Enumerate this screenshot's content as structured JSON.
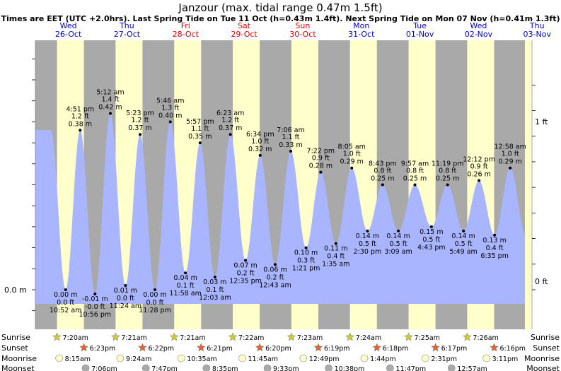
{
  "title": "Janzour (max. tidal range 0.47m 1.5ft)",
  "subtitle": "Times are EET (UTC +2.0hrs). Last Spring Tide on Tue 11 Oct (h=0.43m 1.4ft). Next Spring Tide on Mon 07 Nov (h=0.41m 1.3ft)",
  "colors": {
    "night": "#a9a9a9",
    "day": "#ffffcc",
    "tide": "#a9b5ff",
    "weekend": "#dd0000",
    "weekday": "#0000cc"
  },
  "days": [
    {
      "dow": "Wed",
      "date": "26-Oct",
      "weekend": false
    },
    {
      "dow": "Thu",
      "date": "27-Oct",
      "weekend": false
    },
    {
      "dow": "Fri",
      "date": "28-Oct",
      "weekend": true
    },
    {
      "dow": "Sat",
      "date": "29-Oct",
      "weekend": true
    },
    {
      "dow": "Sun",
      "date": "30-Oct",
      "weekend": true
    },
    {
      "dow": "Mon",
      "date": "31-Oct",
      "weekend": false
    },
    {
      "dow": "Tue",
      "date": "01-Nov",
      "weekend": false
    },
    {
      "dow": "Wed",
      "date": "02-Nov",
      "weekend": false
    },
    {
      "dow": "Thu",
      "date": "03-Nov",
      "weekend": false
    }
  ],
  "chart_data": {
    "type": "area",
    "y_left_label": "0.0 m",
    "y_right_ticks": [
      "1 ft",
      "0 ft"
    ],
    "x_range_hours": [
      -1.5,
      199
    ],
    "ylim_m": [
      -0.1,
      0.55
    ],
    "tides": [
      {
        "day": 0,
        "t": "10:52 am",
        "type": "low",
        "m": "0.00 m",
        "ft": "0.0 ft",
        "hour": 10.87,
        "h": 0.0
      },
      {
        "day": 0,
        "t": "4:51 pm",
        "type": "high",
        "m": "0.38 m",
        "ft": "1.2 ft",
        "hour": 16.85,
        "h": 0.38
      },
      {
        "day": 0,
        "t": "10:56 pm",
        "type": "low",
        "m": "-0.01 m",
        "ft": "-0.0 ft",
        "hour": 22.93,
        "h": -0.01
      },
      {
        "day": 1,
        "t": "5:12 am",
        "type": "high",
        "m": "0.42 m",
        "ft": "1.4 ft",
        "hour": 29.2,
        "h": 0.42
      },
      {
        "day": 1,
        "t": "11:24 am",
        "type": "low",
        "m": "0.01 m",
        "ft": "0.0 ft",
        "hour": 35.4,
        "h": 0.01
      },
      {
        "day": 1,
        "t": "5:23 pm",
        "type": "high",
        "m": "0.37 m",
        "ft": "1.2 ft",
        "hour": 41.38,
        "h": 0.37
      },
      {
        "day": 1,
        "t": "11:28 pm",
        "type": "low",
        "m": "0.00 m",
        "ft": "0.0 ft",
        "hour": 47.47,
        "h": 0.0
      },
      {
        "day": 2,
        "t": "5:46 am",
        "type": "high",
        "m": "0.40 m",
        "ft": "1.3 ft",
        "hour": 53.77,
        "h": 0.4
      },
      {
        "day": 2,
        "t": "11:58 am",
        "type": "low",
        "m": "0.04 m",
        "ft": "0.1 ft",
        "hour": 59.97,
        "h": 0.04
      },
      {
        "day": 2,
        "t": "5:57 pm",
        "type": "high",
        "m": "0.35 m",
        "ft": "1.1 ft",
        "hour": 65.95,
        "h": 0.35
      },
      {
        "day": 3,
        "t": "12:03 am",
        "type": "low",
        "m": "0.03 m",
        "ft": "0.1 ft",
        "hour": 72.05,
        "h": 0.03
      },
      {
        "day": 3,
        "t": "6:23 am",
        "type": "high",
        "m": "0.37 m",
        "ft": "1.2 ft",
        "hour": 78.38,
        "h": 0.37
      },
      {
        "day": 3,
        "t": "12:35 pm",
        "type": "low",
        "m": "0.07 m",
        "ft": "0.2 ft",
        "hour": 84.58,
        "h": 0.07
      },
      {
        "day": 3,
        "t": "6:34 pm",
        "type": "high",
        "m": "0.32 m",
        "ft": "1.0 ft",
        "hour": 90.57,
        "h": 0.32
      },
      {
        "day": 4,
        "t": "12:43 am",
        "type": "low",
        "m": "0.06 m",
        "ft": "0.2 ft",
        "hour": 96.72,
        "h": 0.06
      },
      {
        "day": 4,
        "t": "7:06 am",
        "type": "high",
        "m": "0.33 m",
        "ft": "1.1 ft",
        "hour": 103.1,
        "h": 0.33
      },
      {
        "day": 4,
        "t": "1:21 pm",
        "type": "low",
        "m": "0.10 m",
        "ft": "0.3 ft",
        "hour": 109.35,
        "h": 0.1
      },
      {
        "day": 4,
        "t": "7:22 pm",
        "type": "high",
        "m": "0.28 m",
        "ft": "0.9 ft",
        "hour": 115.37,
        "h": 0.28
      },
      {
        "day": 5,
        "t": "1:35 am",
        "type": "low",
        "m": "0.11 m",
        "ft": "0.4 ft",
        "hour": 121.58,
        "h": 0.11
      },
      {
        "day": 5,
        "t": "8:05 am",
        "type": "high",
        "m": "0.29 m",
        "ft": "1.0 ft",
        "hour": 128.08,
        "h": 0.29
      },
      {
        "day": 5,
        "t": "2:30 pm",
        "type": "low",
        "m": "0.14 m",
        "ft": "0.5 ft",
        "hour": 134.5,
        "h": 0.14
      },
      {
        "day": 5,
        "t": "8:43 pm",
        "type": "high",
        "m": "0.25 m",
        "ft": "0.8 ft",
        "hour": 140.72,
        "h": 0.25
      },
      {
        "day": 6,
        "t": "3:09 am",
        "type": "low",
        "m": "0.14 m",
        "ft": "0.5 ft",
        "hour": 147.15,
        "h": 0.14
      },
      {
        "day": 6,
        "t": "9:57 am",
        "type": "high",
        "m": "0.25 m",
        "ft": "0.8 ft",
        "hour": 153.95,
        "h": 0.25
      },
      {
        "day": 6,
        "t": "4:43 pm",
        "type": "low",
        "m": "0.15 m",
        "ft": "0.5 ft",
        "hour": 160.72,
        "h": 0.15
      },
      {
        "day": 6,
        "t": "11:19 pm",
        "type": "high",
        "m": "0.25 m",
        "ft": "0.8 ft",
        "hour": 167.32,
        "h": 0.25
      },
      {
        "day": 7,
        "t": "5:49 am",
        "type": "low",
        "m": "0.14 m",
        "ft": "0.5 ft",
        "hour": 173.82,
        "h": 0.14
      },
      {
        "day": 7,
        "t": "12:12 pm",
        "type": "high",
        "m": "0.26 m",
        "ft": "0.9 ft",
        "hour": 180.2,
        "h": 0.26
      },
      {
        "day": 7,
        "t": "6:35 pm",
        "type": "low",
        "m": "0.13 m",
        "ft": "0.4 ft",
        "hour": 186.58,
        "h": 0.13
      },
      {
        "day": 8,
        "t": "12:58 am",
        "type": "high",
        "m": "0.29 m",
        "ft": "1.0 ft",
        "hour": 192.97,
        "h": 0.29
      }
    ],
    "sun": {
      "sunrise_hour": 7.35,
      "sunset_hour": 18.38
    },
    "rows": [
      {
        "label": "Sunrise",
        "icon": "sunrise-icon",
        "items": [
          "7:20am",
          "7:21am",
          "7:21am",
          "7:22am",
          "7:23am",
          "7:24am",
          "7:25am",
          "7:26am"
        ]
      },
      {
        "label": "Sunset",
        "icon": "sunset-icon",
        "items": [
          "6:23pm",
          "6:22pm",
          "6:21pm",
          "6:20pm",
          "6:19pm",
          "6:18pm",
          "6:17pm",
          "6:16pm"
        ]
      },
      {
        "label": "Moonrise",
        "icon": "moonrise-icon",
        "items": [
          "8:15am",
          "9:24am",
          "10:35am",
          "11:45am",
          "12:49pm",
          "1:44pm",
          "2:31pm",
          "3:11pm"
        ]
      },
      {
        "label": "Moonset",
        "icon": "moonset-icon",
        "items": [
          "7:06pm",
          "7:47pm",
          "8:35pm",
          "9:33pm",
          "10:38pm",
          "11:47pm",
          "12:57am"
        ]
      }
    ],
    "moonset_days": [
      0,
      1,
      2,
      3,
      4,
      5,
      7
    ],
    "moonset_hours": [
      19.1,
      19.78,
      20.58,
      21.55,
      22.63,
      23.78,
      0.95
    ]
  }
}
